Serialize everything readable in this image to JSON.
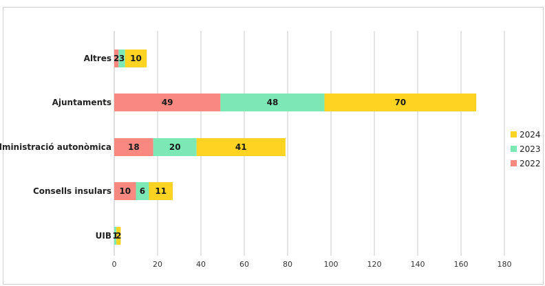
{
  "chart_data": {
    "type": "bar",
    "orientation": "horizontal",
    "stacked": true,
    "categories": [
      "Altres",
      "Ajuntaments",
      "Administració autonòmica",
      "Consells insulars",
      "UIB"
    ],
    "series": [
      {
        "name": "2022",
        "color": "#f98880",
        "values": [
          2,
          49,
          18,
          10,
          0
        ]
      },
      {
        "name": "2023",
        "color": "#7ce8b6",
        "values": [
          3,
          48,
          20,
          6,
          1
        ]
      },
      {
        "name": "2024",
        "color": "#fed322",
        "values": [
          10,
          70,
          41,
          11,
          2
        ]
      }
    ],
    "xlim": [
      0,
      180
    ],
    "xticks": [
      0,
      20,
      40,
      60,
      80,
      100,
      120,
      140,
      160,
      180
    ],
    "grid": "vertical",
    "legend": "right",
    "legend_order": [
      "2024",
      "2023",
      "2022"
    ],
    "title": "",
    "xlabel": "",
    "ylabel": ""
  }
}
